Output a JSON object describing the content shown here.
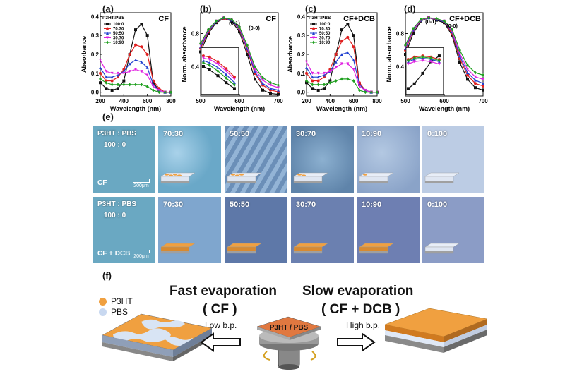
{
  "panels": {
    "a": {
      "label": "(a)",
      "tag": "CF",
      "ylabel": "Absorbance",
      "xlabel": "Wavelength (nm)"
    },
    "b": {
      "label": "(b)",
      "tag": "CF",
      "ylabel": "Norm. absorbance",
      "xlabel": "Wavelength (nm)"
    },
    "c": {
      "label": "(c)",
      "tag": "CF+DCB",
      "ylabel": "Absorbance",
      "xlabel": "Wavelength (nm)"
    },
    "d": {
      "label": "(d)",
      "tag": "CF+DCB",
      "ylabel": "Norm. absorbance",
      "xlabel": "Wavelength (nm)"
    },
    "e": {
      "label": "(e)"
    },
    "f": {
      "label": "(f)"
    }
  },
  "legend": {
    "title": "P3HT:PBS",
    "entries": [
      "100:0",
      "70:30",
      "50:50",
      "30:70",
      "10:90"
    ]
  },
  "series_colors": [
    "#111111",
    "#e02020",
    "#2040d0",
    "#e020e0",
    "#20a020"
  ],
  "chart_data": [
    {
      "type": "line",
      "id": "a",
      "xlabel": "Wavelength (nm)",
      "ylabel": "Absorbance",
      "xlim": [
        200,
        800
      ],
      "ylim": [
        -0.02,
        0.42
      ],
      "xticks": [
        200,
        400,
        600,
        800
      ],
      "yticks": [
        0.0,
        0.1,
        0.2,
        0.3,
        0.4
      ],
      "x": [
        200,
        250,
        300,
        350,
        400,
        450,
        500,
        550,
        600,
        650,
        700,
        750,
        800
      ],
      "series": [
        {
          "name": "100:0",
          "values": [
            0.05,
            0.02,
            0.01,
            0.02,
            0.06,
            0.2,
            0.33,
            0.36,
            0.3,
            0.05,
            0.01,
            0.0,
            0.0
          ]
        },
        {
          "name": "70:30",
          "values": [
            0.1,
            0.06,
            0.06,
            0.08,
            0.12,
            0.2,
            0.25,
            0.24,
            0.2,
            0.06,
            0.02,
            0.0,
            0.0
          ]
        },
        {
          "name": "50:50",
          "values": [
            0.13,
            0.08,
            0.08,
            0.09,
            0.11,
            0.15,
            0.17,
            0.16,
            0.13,
            0.04,
            0.01,
            0.0,
            0.0
          ]
        },
        {
          "name": "30:70",
          "values": [
            0.17,
            0.11,
            0.1,
            0.1,
            0.1,
            0.11,
            0.12,
            0.11,
            0.09,
            0.03,
            0.01,
            0.0,
            0.0
          ]
        },
        {
          "name": "10:90",
          "values": [
            0.07,
            0.05,
            0.04,
            0.04,
            0.04,
            0.04,
            0.04,
            0.04,
            0.03,
            0.01,
            0.0,
            0.0,
            0.0
          ]
        }
      ]
    },
    {
      "type": "line",
      "id": "b",
      "xlabel": "Wavelength (nm)",
      "ylabel": "Norm. absorbance",
      "xlim": [
        500,
        700
      ],
      "ylim": [
        0.05,
        1.05
      ],
      "xticks": [
        500,
        600,
        700
      ],
      "yticks": [
        0.4,
        0.8
      ],
      "annotations": [
        "(0-1)",
        "(0-0)"
      ],
      "x": [
        500,
        520,
        540,
        560,
        580,
        600,
        620,
        640,
        660,
        680,
        700
      ],
      "series": [
        {
          "name": "100:0",
          "values": [
            0.58,
            0.8,
            0.93,
            0.98,
            0.95,
            0.82,
            0.55,
            0.25,
            0.12,
            0.08,
            0.07
          ]
        },
        {
          "name": "70:30",
          "values": [
            0.62,
            0.82,
            0.94,
            0.98,
            0.96,
            0.85,
            0.6,
            0.32,
            0.18,
            0.12,
            0.1
          ]
        },
        {
          "name": "50:50",
          "values": [
            0.64,
            0.83,
            0.94,
            0.99,
            0.96,
            0.86,
            0.62,
            0.34,
            0.2,
            0.14,
            0.12
          ]
        },
        {
          "name": "30:70",
          "values": [
            0.66,
            0.84,
            0.95,
            0.99,
            0.97,
            0.87,
            0.64,
            0.37,
            0.24,
            0.18,
            0.15
          ]
        },
        {
          "name": "10:90",
          "values": [
            0.68,
            0.85,
            0.95,
            0.99,
            0.97,
            0.88,
            0.66,
            0.4,
            0.27,
            0.21,
            0.18
          ]
        }
      ],
      "inset": {
        "x": [
          505,
          520,
          540,
          560,
          580
        ],
        "series": [
          {
            "name": "100:0",
            "values": [
              0.24,
              0.21,
              0.16,
              0.1,
              0.05
            ]
          },
          {
            "name": "70:30",
            "values": [
              0.33,
              0.32,
              0.28,
              0.22,
              0.15
            ]
          },
          {
            "name": "50:50",
            "values": [
              0.29,
              0.27,
              0.23,
              0.17,
              0.1
            ]
          },
          {
            "name": "30:70",
            "values": [
              0.31,
              0.3,
              0.26,
              0.2,
              0.13
            ]
          },
          {
            "name": "10:90",
            "values": [
              0.27,
              0.25,
              0.2,
              0.14,
              0.08
            ]
          }
        ]
      }
    },
    {
      "type": "line",
      "id": "c",
      "xlabel": "Wavelength (nm)",
      "ylabel": "Absorbance",
      "xlim": [
        200,
        800
      ],
      "ylim": [
        -0.02,
        0.42
      ],
      "xticks": [
        200,
        400,
        600,
        800
      ],
      "yticks": [
        0.0,
        0.1,
        0.2,
        0.3,
        0.4
      ],
      "x": [
        200,
        250,
        300,
        350,
        400,
        450,
        500,
        550,
        600,
        650,
        700,
        750,
        800
      ],
      "series": [
        {
          "name": "100:0",
          "values": [
            0.05,
            0.02,
            0.01,
            0.02,
            0.06,
            0.2,
            0.33,
            0.36,
            0.3,
            0.04,
            0.01,
            0.0,
            0.0
          ]
        },
        {
          "name": "70:30",
          "values": [
            0.1,
            0.06,
            0.06,
            0.08,
            0.12,
            0.2,
            0.27,
            0.29,
            0.24,
            0.05,
            0.01,
            0.0,
            0.0
          ]
        },
        {
          "name": "50:50",
          "values": [
            0.13,
            0.08,
            0.08,
            0.09,
            0.11,
            0.16,
            0.2,
            0.21,
            0.17,
            0.04,
            0.01,
            0.0,
            0.0
          ]
        },
        {
          "name": "30:70",
          "values": [
            0.16,
            0.1,
            0.1,
            0.1,
            0.11,
            0.13,
            0.15,
            0.15,
            0.12,
            0.03,
            0.01,
            0.0,
            0.0
          ]
        },
        {
          "name": "10:90",
          "values": [
            0.06,
            0.04,
            0.04,
            0.04,
            0.05,
            0.06,
            0.07,
            0.07,
            0.06,
            0.01,
            0.0,
            0.0,
            0.0
          ]
        }
      ]
    },
    {
      "type": "line",
      "id": "d",
      "xlabel": "Wavelength (nm)",
      "ylabel": "Norm. absorbance",
      "xlim": [
        500,
        700
      ],
      "ylim": [
        0.05,
        1.05
      ],
      "xticks": [
        500,
        600,
        700
      ],
      "yticks": [
        0.4,
        0.8
      ],
      "annotations": [
        "(0-1)",
        "(0-0)"
      ],
      "x": [
        500,
        520,
        540,
        560,
        580,
        600,
        620,
        640,
        660,
        680,
        700
      ],
      "series": [
        {
          "name": "100:0",
          "values": [
            0.55,
            0.8,
            0.95,
            0.99,
            0.96,
            0.93,
            0.78,
            0.45,
            0.25,
            0.15,
            0.12
          ]
        },
        {
          "name": "70:30",
          "values": [
            0.6,
            0.83,
            0.96,
            0.99,
            0.97,
            0.94,
            0.8,
            0.5,
            0.3,
            0.2,
            0.17
          ]
        },
        {
          "name": "50:50",
          "values": [
            0.62,
            0.84,
            0.96,
            0.99,
            0.97,
            0.94,
            0.82,
            0.53,
            0.33,
            0.24,
            0.2
          ]
        },
        {
          "name": "30:70",
          "values": [
            0.64,
            0.85,
            0.96,
            0.99,
            0.97,
            0.95,
            0.83,
            0.56,
            0.37,
            0.28,
            0.25
          ]
        },
        {
          "name": "10:90",
          "values": [
            0.66,
            0.86,
            0.97,
            0.99,
            0.98,
            0.95,
            0.85,
            0.6,
            0.42,
            0.33,
            0.3
          ]
        }
      ],
      "inset": {
        "x": [
          505,
          520,
          540,
          560,
          580
        ],
        "series": [
          {
            "name": "100:0",
            "values": [
              0.05,
              0.09,
              0.18,
              0.28,
              0.33
            ]
          },
          {
            "name": "70:30",
            "values": [
              0.3,
              0.32,
              0.33,
              0.32,
              0.3
            ]
          },
          {
            "name": "50:50",
            "values": [
              0.28,
              0.3,
              0.31,
              0.3,
              0.28
            ]
          },
          {
            "name": "30:70",
            "values": [
              0.26,
              0.28,
              0.29,
              0.28,
              0.26
            ]
          },
          {
            "name": "10:90",
            "values": [
              0.29,
              0.31,
              0.32,
              0.31,
              0.29
            ]
          }
        ]
      }
    }
  ],
  "micrographs": {
    "header_ratio": "P3HT : PBS",
    "header_value": "100 : 0",
    "scale_bar": "200μm",
    "row_cf": {
      "condition": "CF",
      "ratios": [
        "70:30",
        "50:50",
        "30:70",
        "10:90",
        "0:100"
      ]
    },
    "row_dcb": {
      "condition": "CF + DCB",
      "ratios": [
        "70:30",
        "50:50",
        "30:70",
        "10:90",
        "0:100"
      ]
    }
  },
  "schematic": {
    "legend_p3ht": "P3HT",
    "legend_pbs": "PBS",
    "fast_title": "Fast evaporation",
    "fast_solvent": "( CF )",
    "fast_bp": "Low b.p.",
    "slow_title": "Slow evaporation",
    "slow_solvent": "( CF + DCB )",
    "slow_bp": "High b.p.",
    "substrate_label": "P3HT / PBS",
    "p3ht_color": "#f0a040",
    "pbs_color": "#c8d8f0"
  }
}
